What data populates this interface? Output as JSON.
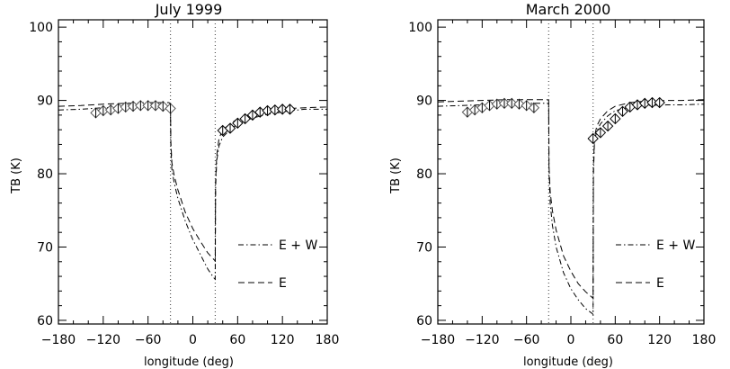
{
  "chart_data": [
    {
      "type": "line",
      "title": "July 1999",
      "xlabel": "longitude (deg)",
      "ylabel": "TB (K)",
      "xlim": [
        -180,
        180
      ],
      "ylim": [
        59.5,
        101
      ],
      "xticks": [
        -180,
        -120,
        -60,
        0,
        60,
        120,
        180
      ],
      "xtick_labels": [
        "−180",
        "−120",
        "−60",
        "0",
        "60",
        "120",
        "180"
      ],
      "yticks": [
        60,
        70,
        80,
        90,
        100
      ],
      "ytick_labels": [
        "60",
        "70",
        "80",
        "90",
        "100"
      ],
      "grid": false,
      "vlines": [
        -30,
        30
      ],
      "legend": {
        "placement": "lower-right",
        "entries": [
          {
            "label": "E + W",
            "style": "dash-dot"
          },
          {
            "label": "E",
            "style": "dashed"
          }
        ]
      },
      "series": [
        {
          "name": "E + W",
          "style": "dash-dot",
          "x": [
            -180,
            -150,
            -120,
            -90,
            -60,
            -40,
            -32,
            -30,
            -29.5,
            -28,
            -25,
            -20,
            -10,
            0,
            10,
            20,
            28,
            30,
            30.5,
            32,
            35,
            40,
            50,
            60,
            80,
            100,
            130,
            150,
            180
          ],
          "y": [
            88.7,
            88.8,
            89.0,
            89.1,
            89.2,
            89.2,
            89.2,
            89.0,
            84.0,
            80.5,
            78.8,
            76.6,
            73.5,
            71.0,
            69.0,
            67.0,
            65.8,
            65.6,
            78.0,
            81.8,
            83.8,
            85.0,
            86.0,
            86.8,
            87.6,
            88.1,
            88.6,
            88.8,
            88.8
          ]
        },
        {
          "name": "E",
          "style": "dashed",
          "x": [
            -180,
            -150,
            -120,
            -90,
            -60,
            -40,
            -32,
            -30,
            -29.5,
            -28,
            -25,
            -20,
            -10,
            0,
            10,
            20,
            28,
            30,
            30.5,
            32,
            35,
            40,
            50,
            60,
            80,
            100,
            130,
            150,
            180
          ],
          "y": [
            89.2,
            89.3,
            89.5,
            89.6,
            89.7,
            89.7,
            89.7,
            89.5,
            84.5,
            81.5,
            79.8,
            77.8,
            74.7,
            72.5,
            70.8,
            69.2,
            68.3,
            68.1,
            79.0,
            82.5,
            84.8,
            86.0,
            86.8,
            87.5,
            88.2,
            88.6,
            88.9,
            89.0,
            89.1
          ]
        },
        {
          "name": "",
          "style": "diamonds",
          "x": [
            -130,
            -120,
            -110,
            -100,
            -90,
            -80,
            -70,
            -60,
            -50,
            -40,
            -30,
            40,
            50,
            60,
            70,
            80,
            90,
            100,
            110,
            120,
            130
          ],
          "y": [
            88.3,
            88.6,
            88.7,
            88.9,
            89.1,
            89.2,
            89.3,
            89.3,
            89.3,
            89.2,
            88.9,
            85.9,
            86.2,
            86.9,
            87.5,
            88.0,
            88.4,
            88.6,
            88.7,
            88.8,
            88.8
          ],
          "yerr": [
            0.4,
            0.4,
            0.4,
            0.4,
            0.4,
            0.4,
            0.4,
            0.4,
            0.4,
            0.4,
            0.4,
            0.4,
            0.4,
            0.4,
            0.4,
            0.4,
            0.4,
            0.4,
            0.4,
            0.4,
            0.4
          ]
        }
      ]
    },
    {
      "type": "line",
      "title": "March 2000",
      "xlabel": "longitude (deg)",
      "ylabel": "TB (K)",
      "xlim": [
        -180,
        180
      ],
      "ylim": [
        59.5,
        101
      ],
      "xticks": [
        -180,
        -120,
        -60,
        0,
        60,
        120,
        180
      ],
      "xtick_labels": [
        "−180",
        "−120",
        "−60",
        "0",
        "60",
        "120",
        "180"
      ],
      "yticks": [
        60,
        70,
        80,
        90,
        100
      ],
      "ytick_labels": [
        "60",
        "70",
        "80",
        "90",
        "100"
      ],
      "grid": false,
      "vlines": [
        -30,
        30
      ],
      "legend": {
        "placement": "lower-right",
        "entries": [
          {
            "label": "E + W",
            "style": "dash-dot"
          },
          {
            "label": "E",
            "style": "dashed"
          }
        ]
      },
      "series": [
        {
          "name": "E + W",
          "style": "dash-dot",
          "x": [
            -180,
            -150,
            -120,
            -90,
            -60,
            -40,
            -32,
            -30,
            -29.5,
            -28,
            -25,
            -20,
            -10,
            0,
            10,
            20,
            28,
            30,
            30.5,
            32,
            35,
            40,
            50,
            60,
            80,
            100,
            130,
            150,
            180
          ],
          "y": [
            89.2,
            89.3,
            89.4,
            89.5,
            89.6,
            89.6,
            89.6,
            89.5,
            80.0,
            76.0,
            73.0,
            70.0,
            66.5,
            64.3,
            62.8,
            61.6,
            61.0,
            60.8,
            80.0,
            84.5,
            85.8,
            86.8,
            87.9,
            88.6,
            89.1,
            89.3,
            89.4,
            89.4,
            89.5
          ]
        },
        {
          "name": "E",
          "style": "dashed",
          "x": [
            -180,
            -150,
            -120,
            -90,
            -60,
            -40,
            -32,
            -30,
            -29.5,
            -28,
            -25,
            -20,
            -10,
            0,
            10,
            20,
            28,
            30,
            30.5,
            32,
            35,
            40,
            50,
            60,
            80,
            100,
            130,
            150,
            180
          ],
          "y": [
            89.8,
            89.9,
            90.0,
            90.1,
            90.1,
            90.1,
            90.1,
            90.0,
            81.0,
            77.5,
            75.0,
            72.3,
            68.8,
            66.7,
            65.0,
            63.9,
            63.2,
            63.0,
            81.0,
            85.0,
            86.5,
            87.5,
            88.6,
            89.2,
            89.7,
            89.9,
            90.0,
            90.0,
            90.1
          ]
        },
        {
          "name": "",
          "style": "diamonds",
          "x": [
            -140,
            -130,
            -120,
            -110,
            -100,
            -90,
            -80,
            -70,
            -60,
            -50,
            30,
            40,
            50,
            60,
            70,
            80,
            90,
            100,
            110,
            120
          ],
          "y": [
            88.4,
            88.7,
            89.0,
            89.3,
            89.5,
            89.6,
            89.6,
            89.5,
            89.3,
            89.0,
            84.8,
            85.6,
            86.5,
            87.5,
            88.5,
            89.1,
            89.4,
            89.6,
            89.7,
            89.7
          ],
          "yerr": [
            0.4,
            0.4,
            0.4,
            0.4,
            0.4,
            0.4,
            0.4,
            0.4,
            0.4,
            0.4,
            0.4,
            0.4,
            0.4,
            0.4,
            0.4,
            0.4,
            0.4,
            0.4,
            0.4,
            0.4
          ]
        }
      ]
    }
  ]
}
